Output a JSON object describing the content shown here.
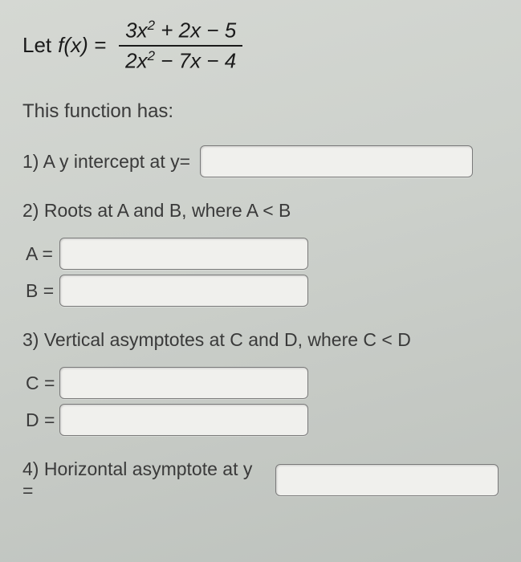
{
  "formula": {
    "let": "Let",
    "fx": "f(x) =",
    "numerator": "3x² + 2x − 5",
    "denominator": "2x² − 7x − 4"
  },
  "heading": "This function has:",
  "q1": {
    "text": "1) A y intercept at y="
  },
  "q2": {
    "text": "2) Roots at A and B, where A < B",
    "labelA": "A =",
    "labelB": "B ="
  },
  "q3": {
    "text": "3) Vertical asymptotes at C and D, where C < D",
    "labelC": "C =",
    "labelD": "D ="
  },
  "q4": {
    "text": "4) Horizontal asymptote at y ="
  }
}
